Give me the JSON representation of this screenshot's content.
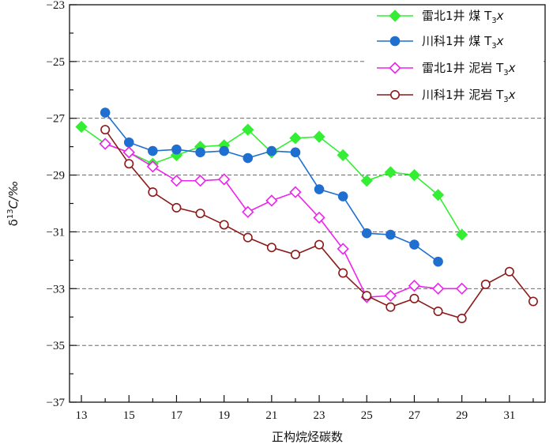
{
  "chart_data": {
    "type": "line",
    "title": "",
    "xlabel": "正构烷烃碳数",
    "ylabel": "δ13C/‰",
    "xlim": [
      12.5,
      32.5
    ],
    "ylim": [
      -37,
      -23
    ],
    "x_ticks": [
      13,
      15,
      17,
      19,
      21,
      23,
      25,
      27,
      29,
      31
    ],
    "y_ticks": [
      -23,
      -25,
      -27,
      -29,
      -31,
      -33,
      -35,
      -37
    ],
    "grid": "horizontal dashed at -25, -27, -29, -31, -33, -35",
    "legend_position": "top-right",
    "series": [
      {
        "name": "雷北1井 煤 T3x",
        "color": "#33ee33",
        "marker": "filled-diamond",
        "x": [
          13,
          14,
          15,
          16,
          17,
          18,
          19,
          20,
          21,
          22,
          23,
          24,
          25,
          26,
          27,
          28,
          29
        ],
        "y": [
          -27.3,
          -27.9,
          -28.2,
          -28.6,
          -28.3,
          -28.0,
          -27.95,
          -27.4,
          -28.2,
          -27.7,
          -27.65,
          -28.3,
          -29.2,
          -28.9,
          -29.0,
          -29.7,
          -31.1
        ]
      },
      {
        "name": "川科1井 煤 T3x",
        "color": "#1f6fd1",
        "marker": "filled-circle",
        "x": [
          14,
          15,
          16,
          17,
          18,
          19,
          20,
          21,
          22,
          23,
          24,
          25,
          26,
          27,
          28
        ],
        "y": [
          -26.8,
          -27.85,
          -28.15,
          -28.1,
          -28.2,
          -28.15,
          -28.4,
          -28.15,
          -28.2,
          -29.5,
          -29.75,
          -31.05,
          -31.1,
          -31.45,
          -32.05
        ]
      },
      {
        "name": "雷北1井 泥岩 T3x",
        "color": "#ee22ee",
        "marker": "open-diamond",
        "x": [
          14,
          15,
          16,
          17,
          18,
          19,
          20,
          21,
          22,
          23,
          24,
          25,
          26,
          27,
          28,
          29
        ],
        "y": [
          -27.9,
          -28.2,
          -28.7,
          -29.2,
          -29.2,
          -29.15,
          -30.3,
          -29.9,
          -29.6,
          -30.5,
          -31.6,
          -33.3,
          -33.25,
          -32.9,
          -33.0,
          -33.0
        ]
      },
      {
        "name": "川科1井 泥岩 T3x",
        "color": "#8b1a1a",
        "marker": "open-circle",
        "x": [
          14,
          15,
          16,
          17,
          18,
          19,
          20,
          21,
          22,
          23,
          24,
          25,
          26,
          27,
          28,
          29,
          30,
          31,
          32
        ],
        "y": [
          -27.4,
          -28.6,
          -29.6,
          -30.15,
          -30.35,
          -30.75,
          -31.2,
          -31.55,
          -31.8,
          -31.45,
          -32.45,
          -33.25,
          -33.65,
          -33.35,
          -33.8,
          -34.05,
          -32.85,
          -32.4,
          -33.45
        ]
      }
    ]
  }
}
